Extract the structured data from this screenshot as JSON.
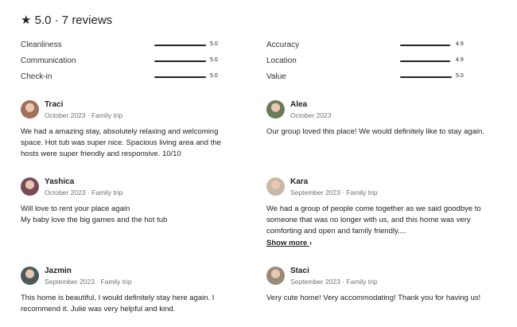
{
  "header": {
    "star_icon": "star-icon",
    "title": "5.0 · 7 reviews"
  },
  "categories": [
    {
      "label": "Cleanliness",
      "value": "5.0",
      "fill": 1.0
    },
    {
      "label": "Communication",
      "value": "5.0",
      "fill": 1.0
    },
    {
      "label": "Check-in",
      "value": "5.0",
      "fill": 1.0
    },
    {
      "label": "Accuracy",
      "value": "4.9",
      "fill": 0.97
    },
    {
      "label": "Location",
      "value": "4.9",
      "fill": 0.97
    },
    {
      "label": "Value",
      "value": "5.0",
      "fill": 1.0
    }
  ],
  "reviews": [
    {
      "name": "Traci",
      "meta": "October 2023 · Family trip",
      "text": "We had a amazing stay, absolutely relaxing and welcoming space. Hot tub was super nice. Spacious living area and the hosts were super friendly and responsive. 10/10",
      "avatar_color": "#a0705a"
    },
    {
      "name": "Alea",
      "meta": "October 2023",
      "text": "Our group loved this place! We would definitely like to stay again.",
      "avatar_color": "#6b7a5a"
    },
    {
      "name": "Yashica",
      "meta": "October 2023 · Family trip",
      "text": "Will love to rent your place again\nMy baby love the big games and the hot tub",
      "avatar_color": "#7a4a5a"
    },
    {
      "name": "Kara",
      "meta": "September 2023 · Family trip",
      "text": "We had a group of people come together as we said goodbye to someone that was no longer with us, and this home was very comforting and open and family friendly....",
      "avatar_color": "#c8b8a8",
      "show_more": "Show more"
    },
    {
      "name": "Jazmin",
      "meta": "September 2023 · Family trip",
      "text": "This home is beautiful, I would definitely stay here again. I recommend it. Julie was very helpful and kind.",
      "avatar_color": "#4a5a5a"
    },
    {
      "name": "Staci",
      "meta": "September 2023 · Family trip",
      "text": "Very cute home! Very accommodating! Thank you for having us!",
      "avatar_color": "#9a8a7a"
    }
  ]
}
